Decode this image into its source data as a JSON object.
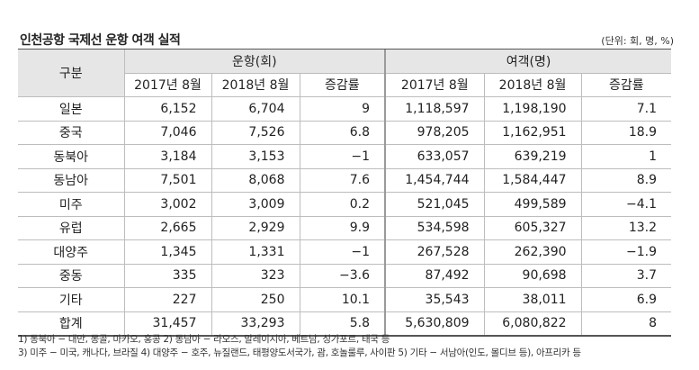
{
  "title": "인천공항 국제선 운항 여객 실적",
  "unit": "(단위: 회, 명, %)",
  "header": {
    "category": "구분",
    "flights": "운항(회)",
    "passengers": "여객(명)",
    "sub": [
      "2017년 8월",
      "2018년 8월",
      "증감률",
      "2017년 8월",
      "2018년 8월",
      "증감률"
    ]
  },
  "rows": [
    {
      "label": "일본",
      "values": [
        "6,152",
        "6,704",
        "9",
        "1,118,597",
        "1,198,190",
        "7.1"
      ]
    },
    {
      "label": "중국",
      "values": [
        "7,046",
        "7,526",
        "6.8",
        "978,205",
        "1,162,951",
        "18.9"
      ]
    },
    {
      "label": "동북아",
      "values": [
        "3,184",
        "3,153",
        "−1",
        "633,057",
        "639,219",
        "1"
      ]
    },
    {
      "label": "동남아",
      "values": [
        "7,501",
        "8,068",
        "7.6",
        "1,454,744",
        "1,584,447",
        "8.9"
      ]
    },
    {
      "label": "미주",
      "values": [
        "3,002",
        "3,009",
        "0.2",
        "521,045",
        "499,589",
        "−4.1"
      ]
    },
    {
      "label": "유럽",
      "values": [
        "2,665",
        "2,929",
        "9.9",
        "534,598",
        "605,327",
        "13.2"
      ]
    },
    {
      "label": "대양주",
      "values": [
        "1,345",
        "1,331",
        "−1",
        "267,528",
        "262,390",
        "−1.9"
      ]
    },
    {
      "label": "중동",
      "values": [
        "335",
        "323",
        "−3.6",
        "87,492",
        "90,698",
        "3.7"
      ]
    },
    {
      "label": "기타",
      "values": [
        "227",
        "250",
        "10.1",
        "35,543",
        "38,011",
        "6.9"
      ]
    },
    {
      "label": "합계",
      "values": [
        "31,457",
        "33,293",
        "5.8",
        "5,630,809",
        "6,080,822",
        "8"
      ]
    }
  ],
  "notes": [
    "1) 동북아 − 대만, 몽골, 마카오, 홍콩 2) 동남아 − 라오스, 말레이시아, 베트남, 싱가포르, 태국 등",
    "3) 미주 − 미국, 캐나다, 브라질 4) 대양주 − 호주, 뉴질랜드, 태평양도서국가, 괌, 호놀룰루, 사이판 5) 기타 − 서남아(인도, 몰디브 등), 아프리카 등"
  ]
}
